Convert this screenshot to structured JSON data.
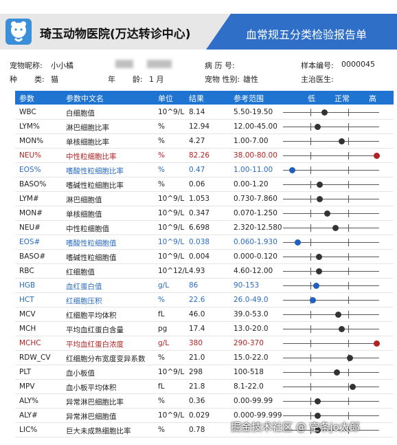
{
  "header": {
    "hospital_name": "琦玉动物医院(万达转诊中心)",
    "report_title": "血常规五分类检验报告单",
    "colors": {
      "gray": "#e7e7e7",
      "blue": "#2f6fc7"
    }
  },
  "info": {
    "pet_name_label": "宠物昵称:",
    "pet_name": "小小橘",
    "species_label": "种",
    "species_label2": "类:",
    "species": "猫",
    "age_label": "年",
    "age_label2": "龄:",
    "age": "1 月",
    "record_label": "病 历 号:",
    "sex_label": "宠物 性别:",
    "sex": "雄性",
    "sample_label": "样本编号:",
    "sample_no": "0000045",
    "doctor_label": "主治医生:"
  },
  "table": {
    "headers": [
      "参数",
      "参数中文名",
      "单位",
      "结果",
      "参考范围",
      "低",
      "正常",
      "高"
    ],
    "rows": [
      {
        "param": "WBC",
        "name": "白细胞值",
        "unit": "10^9/L",
        "result": "8.14",
        "range": "5.50-19.50",
        "flag": "",
        "level": 0.43
      },
      {
        "param": "LYM%",
        "name": "淋巴细胞比率",
        "unit": "%",
        "result": "12.94",
        "range": "12.00-45.00",
        "flag": "",
        "level": 0.36
      },
      {
        "param": "MON%",
        "name": "单核细胞比率",
        "unit": "%",
        "result": "4.27",
        "range": "1.00-7.00",
        "flag": "",
        "level": 0.61
      },
      {
        "param": "NEU%",
        "name": "中性粒细胞比率",
        "unit": "%",
        "result": "82.26",
        "range": "38.00-80.00",
        "flag": "h",
        "level": 0.97
      },
      {
        "param": "EOS%",
        "name": "嗜酸性粒细胞比率",
        "unit": "%",
        "result": "0.47",
        "range": "1.00-11.00",
        "flag": "l",
        "level": 0.09
      },
      {
        "param": "BASO%",
        "name": "嗜碱性粒细胞比率",
        "unit": "%",
        "result": "0.06",
        "range": "0.00-1.20",
        "flag": "",
        "level": 0.38
      },
      {
        "param": "LYM#",
        "name": "淋巴细胞值",
        "unit": "10^9/L",
        "result": "1.053",
        "range": "0.730-7.860",
        "flag": "",
        "level": 0.38
      },
      {
        "param": "MON#",
        "name": "单核细胞值",
        "unit": "10^9/L",
        "result": "0.347",
        "range": "0.070-1.250",
        "flag": "",
        "level": 0.46
      },
      {
        "param": "NEU#",
        "name": "中性粒细胞值",
        "unit": "10^9/L",
        "result": "6.698",
        "range": "2.320-12.580",
        "flag": "",
        "level": 0.54
      },
      {
        "param": "EOS#",
        "name": "嗜酸性粒细胞值",
        "unit": "10^9/L",
        "result": "0.038",
        "range": "0.060-1.930",
        "flag": "l",
        "level": 0.15
      },
      {
        "param": "BASO#",
        "name": "嗜碱性粒细胞值",
        "unit": "10^9/L",
        "result": "0.004",
        "range": "0.000-0.120",
        "flag": "",
        "level": 0.37
      },
      {
        "param": "RBC",
        "name": "红细胞值",
        "unit": "10^12/L",
        "result": "4.93",
        "range": "4.60-12.00",
        "flag": "",
        "level": 0.37
      },
      {
        "param": "HGB",
        "name": "血红蛋白值",
        "unit": "g/L",
        "result": "86",
        "range": "90-153",
        "flag": "l",
        "level": 0.34
      },
      {
        "param": "HCT",
        "name": "红细胞压积",
        "unit": "%",
        "result": "22.6",
        "range": "26.0-49.0",
        "flag": "l",
        "level": 0.31
      },
      {
        "param": "MCV",
        "name": "红细胞平均体积",
        "unit": "fL",
        "result": "46.0",
        "range": "39.0-53.0",
        "flag": "",
        "level": 0.57
      },
      {
        "param": "MCH",
        "name": "平均血红蛋白含量",
        "unit": "pg",
        "result": "17.4",
        "range": "13.0-20.0",
        "flag": "",
        "level": 0.61
      },
      {
        "param": "MCHC",
        "name": "平均血红蛋白浓度",
        "unit": "g/L",
        "result": "380",
        "range": "290-370",
        "flag": "h",
        "level": 0.97
      },
      {
        "param": "RDW_CV",
        "name": "红细胞分布宽度变异系数",
        "unit": "%",
        "result": "21.0",
        "range": "15.0-22.0",
        "flag": "",
        "level": 0.69
      },
      {
        "param": "PLT",
        "name": "血小板值",
        "unit": "10^9/L",
        "result": "298",
        "range": "100-518",
        "flag": "",
        "level": 0.56
      },
      {
        "param": "MPV",
        "name": "血小板平均体积",
        "unit": "fL",
        "result": "21.8",
        "range": "8.1-22.0",
        "flag": "",
        "level": 0.72
      },
      {
        "param": "ALY%",
        "name": "异常淋巴细胞比率",
        "unit": "%",
        "result": "0.36",
        "range": "0.00-99.99",
        "flag": "",
        "level": 0.36
      },
      {
        "param": "ALY#",
        "name": "异常淋巴细胞值",
        "unit": "10^9/L",
        "result": "0.029",
        "range": "0.000-99.999",
        "flag": "",
        "level": 0.36
      },
      {
        "param": "LIC%",
        "name": "巨大未成熟细胞比率",
        "unit": "%",
        "result": "0.78",
        "range": "",
        "flag": "",
        "level": 0.36
      }
    ]
  },
  "watermark": "掘金技术社区 @ 空条jo太郎"
}
